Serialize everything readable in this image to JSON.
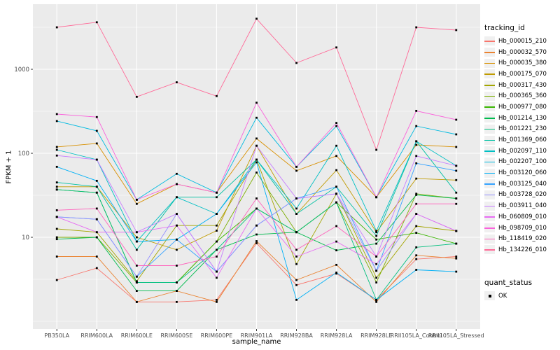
{
  "figure": {
    "background": "#FFFFFF",
    "panel_background": "#EBEBEB",
    "grid_color": "#FFFFFF",
    "tick_color": "#333333",
    "tick_label_color": "#4D4D4D",
    "point_color": "#000000"
  },
  "chart_data": {
    "type": "line",
    "title": "",
    "xlabel": "sample_name",
    "ylabel": "FPKM + 1",
    "y_scale": "log10",
    "y_ticks": [
      10,
      100,
      1000
    ],
    "y_minor_ticks": [
      3.162,
      31.62,
      316.2,
      3162
    ],
    "y_range": [
      1,
      5500
    ],
    "grid": true,
    "legend_position": "right",
    "point_shape": "square",
    "categories": [
      "PB350LA",
      "RRIM600LA",
      "RRIM600LE",
      "RRIM600SE",
      "RRIM600PE",
      "RRIM901LA",
      "RRIM928BA",
      "RRIM928LA",
      "RRIM928LE",
      "RRII105LA_Control",
      "RRII105LA_Stressed"
    ],
    "legends": [
      {
        "title": "tracking_id"
      },
      {
        "title": "quant_status",
        "items": [
          {
            "label": "OK",
            "marker": "black-square"
          }
        ]
      }
    ],
    "series": [
      {
        "name": "Hb_000015_210",
        "color": "#F8766D",
        "values": [
          3.1,
          4.3,
          1.7,
          1.7,
          1.8,
          8.5,
          2.7,
          3.7,
          1.8,
          5.5,
          5.9
        ]
      },
      {
        "name": "Hb_000032_570",
        "color": "#EA8331",
        "values": [
          5.9,
          5.9,
          1.7,
          2.3,
          1.7,
          9.0,
          3.1,
          4.7,
          1.7,
          6.1,
          5.6
        ]
      },
      {
        "name": "Hb_000035_380",
        "color": "#D89000",
        "values": [
          119,
          131,
          25,
          43,
          34,
          150,
          62,
          93,
          30,
          126,
          119
        ]
      },
      {
        "name": "Hb_000175_070",
        "color": "#C09B00",
        "values": [
          40,
          40,
          10,
          7.1,
          12,
          123,
          19,
          63,
          11.5,
          50,
          48
        ]
      },
      {
        "name": "Hb_000317_430",
        "color": "#A3A500",
        "values": [
          12.6,
          11.5,
          3.0,
          13.8,
          13.8,
          84,
          4.8,
          33,
          3.3,
          13.6,
          11.9
        ]
      },
      {
        "name": "Hb_000365_360",
        "color": "#7CAE00",
        "values": [
          10,
          10,
          2.9,
          2.9,
          8.9,
          59,
          11.5,
          26,
          2.9,
          33,
          29
        ]
      },
      {
        "name": "Hb_000977_080",
        "color": "#39B600",
        "values": [
          37,
          34,
          2.9,
          2.9,
          8.9,
          22,
          11.5,
          26,
          9.4,
          11.3,
          8.4
        ]
      },
      {
        "name": "Hb_001214_130",
        "color": "#00BB4E",
        "values": [
          9.5,
          10,
          2.3,
          2.3,
          7.1,
          10.8,
          11.5,
          7.0,
          8.4,
          32,
          29
        ]
      },
      {
        "name": "Hb_001221_230",
        "color": "#00BF7D",
        "values": [
          37,
          34,
          2.9,
          2.9,
          7.1,
          22,
          11.5,
          26,
          1.8,
          7.6,
          8.4
        ]
      },
      {
        "name": "Hb_001369_060",
        "color": "#00C1A3",
        "values": [
          45,
          40,
          7.1,
          30,
          30,
          84,
          19,
          40,
          10.4,
          139,
          34
        ]
      },
      {
        "name": "Hb_002097_110",
        "color": "#00BFC4",
        "values": [
          110,
          84,
          8.9,
          30,
          19,
          84,
          22,
          123,
          11.9,
          139,
          71
        ]
      },
      {
        "name": "Hb_002207_100",
        "color": "#00BAE0",
        "values": [
          242,
          185,
          28,
          57,
          34,
          265,
          69,
          211,
          30,
          211,
          168
        ]
      },
      {
        "name": "Hb_003120_060",
        "color": "#00B0F6",
        "values": [
          69,
          47,
          8.9,
          9.4,
          19,
          78,
          1.8,
          3.8,
          1.8,
          4.1,
          3.9
        ]
      },
      {
        "name": "Hb_003125_040",
        "color": "#35A2FF",
        "values": [
          17.5,
          16.4,
          3.4,
          9.4,
          3.9,
          13.8,
          29,
          40,
          4.0,
          76,
          62
        ]
      },
      {
        "name": "Hb_003728_020",
        "color": "#9590FF",
        "values": [
          17.5,
          16.4,
          3.4,
          19,
          3.9,
          13.8,
          29,
          33,
          4.0,
          19,
          11.9
        ]
      },
      {
        "name": "Hb_003911_040",
        "color": "#C77CFF",
        "values": [
          94,
          84,
          11.5,
          19,
          3.9,
          123,
          29,
          33,
          5.9,
          93,
          71
        ]
      },
      {
        "name": "Hb_060809_010",
        "color": "#E76BF3",
        "values": [
          17.5,
          11.5,
          11.5,
          13.8,
          3.3,
          22,
          5.9,
          8.9,
          4.8,
          19,
          11.9
        ]
      },
      {
        "name": "Hb_098709_010",
        "color": "#FA62DB",
        "values": [
          293,
          270,
          28,
          43,
          34,
          400,
          69,
          230,
          30,
          320,
          251
        ]
      },
      {
        "name": "Hb_118419_020",
        "color": "#FF62BC",
        "values": [
          21,
          22,
          4.6,
          4.6,
          5.9,
          29,
          7.1,
          13.6,
          5.9,
          25,
          25
        ]
      },
      {
        "name": "Hb_134226_010",
        "color": "#FF6A98",
        "values": [
          3160,
          3630,
          470,
          700,
          480,
          4000,
          1190,
          1820,
          110,
          3160,
          2930
        ]
      }
    ]
  }
}
